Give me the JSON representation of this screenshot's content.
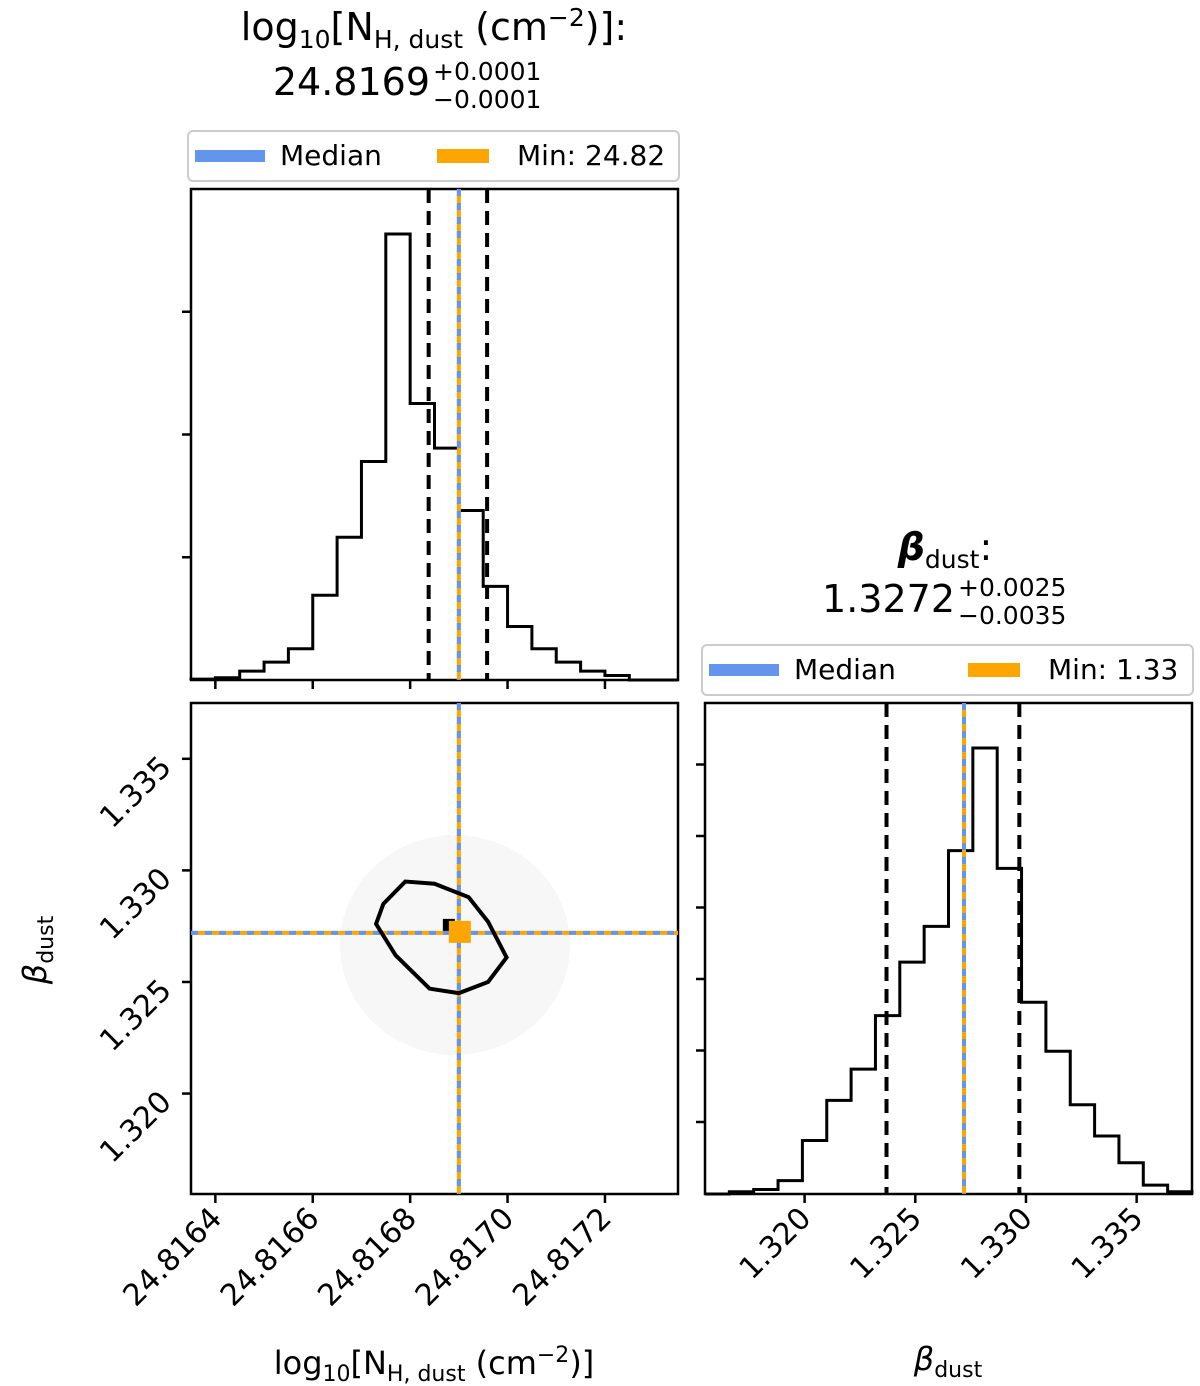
{
  "labels": {
    "param1_base": "log",
    "param1_base_sub": "10",
    "param1_open": "[N",
    "param1_sub": "H, dust",
    "param1_close": " (cm",
    "param1_sup": "−2",
    "param1_end": ")]",
    "param2_symbol": "β",
    "param2_sub": "dust",
    "colon": ":"
  },
  "summaries": [
    {
      "median": "24.8169",
      "plus": "+0.0001",
      "minus": "−0.0001"
    },
    {
      "median": "1.3272",
      "plus": "+0.0025",
      "minus": "−0.0035"
    }
  ],
  "legends": [
    {
      "median_label": "Median",
      "min_label": "Min: 24.82"
    },
    {
      "median_label": "Median",
      "min_label": "Min: 1.33"
    }
  ],
  "colors": {
    "median": "#6495ED",
    "min": "#FFA500",
    "hist": "#000000",
    "quantile": "#000000"
  },
  "chart_data": [
    {
      "type": "histogram",
      "panel": "top-left",
      "xlim": [
        24.81635,
        24.81735
      ],
      "bin_edges": [
        24.81635,
        24.8164,
        24.81645,
        24.8165,
        24.81655,
        24.8166,
        24.81665,
        24.8167,
        24.81675,
        24.8168,
        24.81685,
        24.8169,
        24.81695,
        24.817,
        24.81705,
        24.8171,
        24.81715,
        24.8172,
        24.81725,
        24.8173,
        24.81735
      ],
      "counts": [
        0.002,
        0.005,
        0.02,
        0.04,
        0.07,
        0.19,
        0.32,
        0.49,
        1.0,
        0.62,
        0.52,
        0.38,
        0.21,
        0.12,
        0.07,
        0.04,
        0.02,
        0.01,
        0.0,
        0.0
      ],
      "quantiles": [
        24.816838,
        24.8169,
        24.816958
      ],
      "median": 24.8169,
      "min": 24.8169,
      "xticks": [
        "24.8164",
        "24.8166",
        "24.8168",
        "24.8170",
        "24.8172"
      ],
      "xtick_values": [
        24.8164,
        24.8166,
        24.8168,
        24.817,
        24.8172
      ]
    },
    {
      "type": "contour-2d",
      "panel": "bottom-left",
      "xlim": [
        24.81635,
        24.81735
      ],
      "ylim": [
        1.3155,
        1.3375
      ],
      "contour": [
        [
          24.816745,
          1.3285
        ],
        [
          24.81679,
          1.3295
        ],
        [
          24.81685,
          1.3294
        ],
        [
          24.81692,
          1.3288
        ],
        [
          24.81696,
          1.3277
        ],
        [
          24.816998,
          1.3261
        ],
        [
          24.81696,
          1.325
        ],
        [
          24.8169,
          1.3245
        ],
        [
          24.81684,
          1.3247
        ],
        [
          24.81677,
          1.3262
        ],
        [
          24.81673,
          1.3276
        ]
      ],
      "point": [
        24.8169,
        1.3272
      ],
      "median_x": 24.8169,
      "median_y": 1.3272,
      "yticks": [
        "1.320",
        "1.325",
        "1.330",
        "1.335"
      ],
      "ytick_values": [
        1.32,
        1.325,
        1.33,
        1.335
      ]
    },
    {
      "type": "histogram",
      "panel": "bottom-right",
      "xlim": [
        1.3155,
        1.3375
      ],
      "bin_edges": [
        1.3155,
        1.3166,
        1.3177,
        1.3188,
        1.3199,
        1.321,
        1.3221,
        1.3232,
        1.3243,
        1.3254,
        1.3265,
        1.3276,
        1.3287,
        1.3298,
        1.3309,
        1.332,
        1.3331,
        1.3342,
        1.3353,
        1.3364,
        1.3375
      ],
      "counts": [
        0.0,
        0.005,
        0.01,
        0.03,
        0.12,
        0.21,
        0.28,
        0.4,
        0.52,
        0.6,
        0.77,
        1.0,
        0.73,
        0.43,
        0.32,
        0.2,
        0.13,
        0.07,
        0.02,
        0.005
      ],
      "quantiles": [
        1.3237,
        1.3272,
        1.3297
      ],
      "median": 1.3272,
      "min": 1.3272,
      "xticks": [
        "1.320",
        "1.325",
        "1.330",
        "1.335"
      ],
      "xtick_values": [
        1.32,
        1.325,
        1.33,
        1.335
      ]
    }
  ]
}
